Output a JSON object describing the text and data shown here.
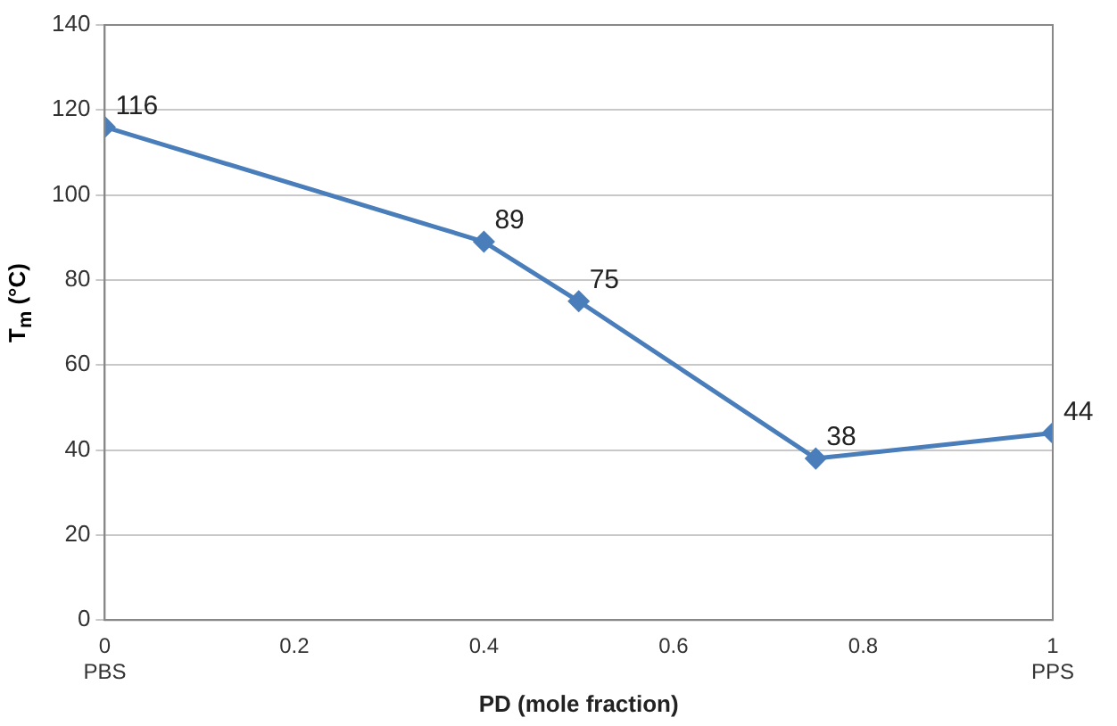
{
  "chart_data": {
    "type": "line",
    "xlabel": "PD (mole fraction)",
    "ylabel": "T$_{m}$ (°C)",
    "x": [
      0,
      0.4,
      0.5,
      0.75,
      1
    ],
    "series": [
      {
        "color": "#4a7ebb",
        "values": [
          116,
          89,
          75,
          38,
          44
        ]
      }
    ],
    "xlim": [
      0,
      1
    ],
    "xticks": [
      {
        "value": 0,
        "label": "0\nPBS"
      },
      0.2,
      0.4,
      0.6,
      0.8,
      {
        "value": 1,
        "label": "1\nPPS"
      }
    ],
    "ylim": [
      0,
      140
    ],
    "yticks": [
      0,
      20,
      40,
      60,
      80,
      100,
      120,
      140
    ],
    "grid": "y",
    "legend": false,
    "marker": "diamond",
    "line_style": "solid",
    "data_labels": true
  }
}
